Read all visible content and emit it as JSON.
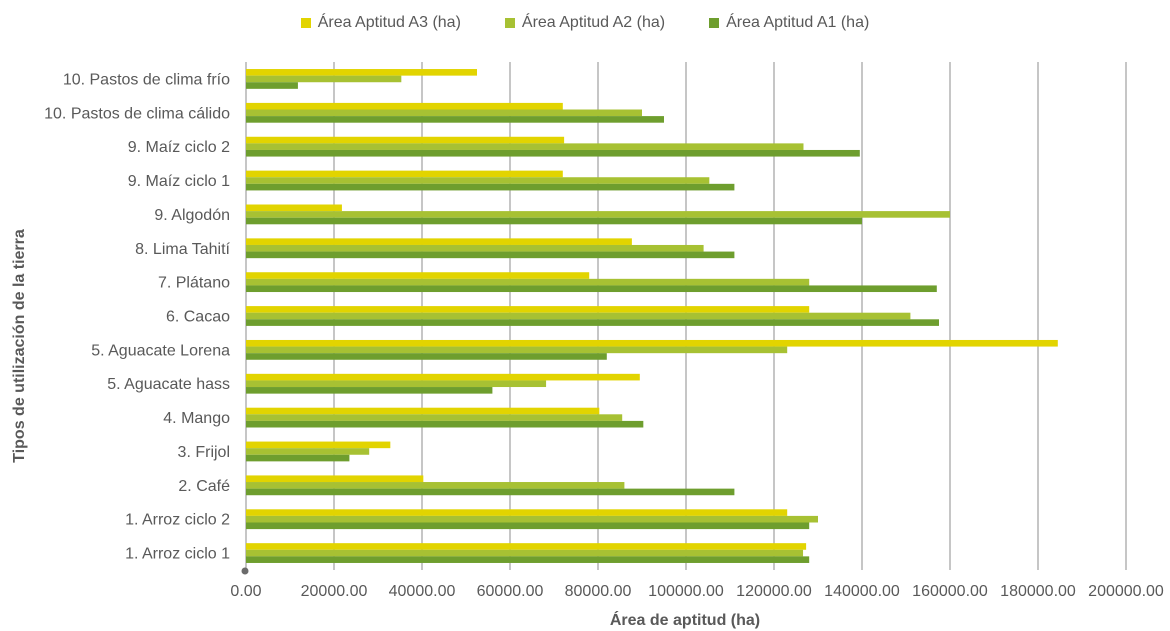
{
  "chart_data": {
    "type": "bar",
    "orientation": "horizontal",
    "title": "",
    "xlabel": "Área de aptitud (ha)",
    "ylabel": "Tipos de utilización de la tierra",
    "xlim": [
      0,
      200000
    ],
    "x_ticks": [
      "0.00",
      "20000.00",
      "40000.00",
      "60000.00",
      "80000.00",
      "100000.00",
      "120000.00",
      "140000.00",
      "160000.00",
      "180000.00",
      "200000.00"
    ],
    "grid": "vertical",
    "legend_position": "top",
    "categories": [
      "10. Pastos de clima frío",
      "10. Pastos de clima cálido",
      "9. Maíz ciclo 2",
      "9. Maíz ciclo 1",
      "9. Algodón",
      "8. Lima Tahití",
      "7. Plátano",
      "6. Cacao",
      "5. Aguacate Lorena",
      "5. Aguacate hass",
      "4. Mango",
      "3. Frijol",
      "2. Café",
      "1. Arroz ciclo 2",
      "1. Arroz ciclo 1"
    ],
    "series": [
      {
        "name": "Área Aptitud A3 (ha)",
        "color": "#e2d400",
        "values": [
          52500,
          72000,
          72300,
          72000,
          21800,
          87700,
          78000,
          128000,
          184500,
          89500,
          80300,
          32800,
          40300,
          123000,
          127300
        ]
      },
      {
        "name": "Área Aptitud A2 (ha)",
        "color": "#a7c133",
        "values": [
          35300,
          90000,
          126700,
          105300,
          160000,
          104000,
          128000,
          151000,
          123000,
          68200,
          85500,
          28000,
          86000,
          130000,
          126600
        ]
      },
      {
        "name": "Área Aptitud A1 (ha)",
        "color": "#6e9e2e",
        "values": [
          11800,
          95000,
          139500,
          111000,
          140000,
          111000,
          157000,
          157500,
          82000,
          56000,
          90300,
          23500,
          111000,
          128000,
          128000
        ]
      }
    ]
  }
}
